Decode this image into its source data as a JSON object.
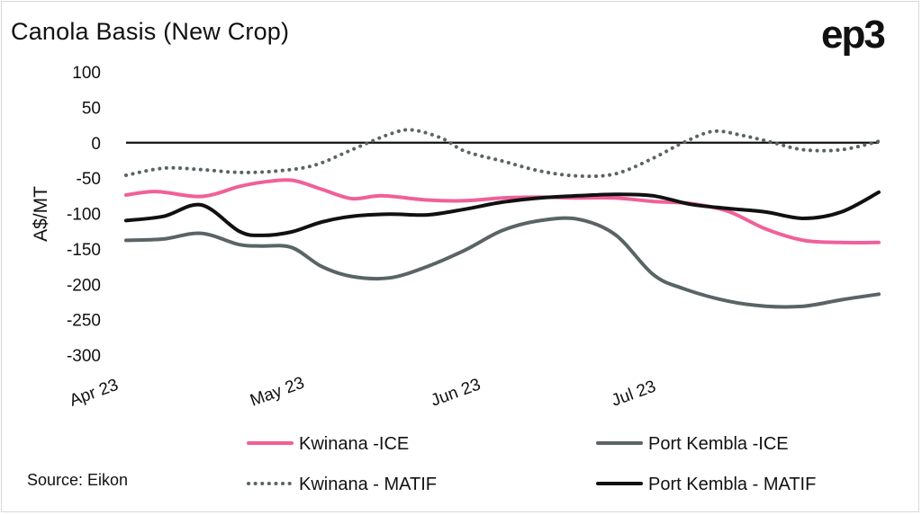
{
  "title": "Canola Basis (New Crop)",
  "logo": "ep3",
  "source": "Source: Eikon",
  "chart_data": {
    "type": "line",
    "title": "Canola Basis (New Crop)",
    "xlabel": "",
    "ylabel": "A$/MT",
    "ylim": [
      -300,
      100
    ],
    "yticks": [
      100,
      50,
      0,
      -50,
      -100,
      -150,
      -200,
      -250,
      -300
    ],
    "ytick_labels": [
      "100",
      "50",
      "0",
      "-50",
      "-100",
      "-150",
      "-200",
      "-250",
      "-300"
    ],
    "xlim": [
      0,
      100
    ],
    "xticks": [
      {
        "pos": 0,
        "label": "Apr 23"
      },
      {
        "pos": 24,
        "label": "May 23"
      },
      {
        "pos": 48,
        "label": "Jun 23"
      },
      {
        "pos": 72,
        "label": "Jul 23"
      }
    ],
    "zero_line": true,
    "legend_position": "bottom",
    "series": [
      {
        "name": "Kwinana -ICE",
        "color": "#f0609a",
        "style": "solid",
        "x": [
          0,
          4,
          10,
          15,
          18,
          22,
          26,
          30,
          34,
          40,
          45,
          50,
          55,
          60,
          65,
          70,
          75,
          80,
          85,
          90,
          95,
          100
        ],
        "values": [
          -74,
          -69,
          -76,
          -62,
          -56,
          -53,
          -66,
          -79,
          -75,
          -81,
          -82,
          -78,
          -77,
          -78,
          -78,
          -83,
          -86,
          -97,
          -122,
          -138,
          -141,
          -141
        ]
      },
      {
        "name": "Port Kembla -ICE",
        "color": "#5a6466",
        "style": "solid",
        "x": [
          0,
          5,
          10,
          15,
          18,
          22,
          26,
          30,
          35,
          40,
          45,
          50,
          55,
          60,
          65,
          70,
          74,
          80,
          85,
          90,
          95,
          100
        ],
        "values": [
          -138,
          -136,
          -128,
          -144,
          -146,
          -148,
          -175,
          -189,
          -191,
          -175,
          -152,
          -124,
          -110,
          -108,
          -130,
          -186,
          -206,
          -224,
          -231,
          -231,
          -222,
          -214
        ]
      },
      {
        "name": "Kwinana - MATIF",
        "color": "#5a6466",
        "style": "dotted",
        "x": [
          0,
          5,
          10,
          15,
          20,
          25,
          30,
          35,
          38,
          42,
          45,
          50,
          55,
          60,
          65,
          70,
          74,
          78,
          82,
          86,
          90,
          95,
          100
        ],
        "values": [
          -46,
          -36,
          -38,
          -42,
          -40,
          -32,
          -10,
          12,
          18,
          6,
          -12,
          -26,
          -40,
          -47,
          -44,
          -22,
          0,
          16,
          10,
          0,
          -10,
          -10,
          2
        ]
      },
      {
        "name": "Port Kembla - MATIF",
        "color": "#111111",
        "style": "solid",
        "x": [
          0,
          5,
          10,
          15,
          18,
          22,
          26,
          30,
          35,
          40,
          45,
          50,
          55,
          60,
          65,
          70,
          75,
          80,
          85,
          90,
          95,
          100
        ],
        "values": [
          -110,
          -104,
          -88,
          -125,
          -131,
          -126,
          -112,
          -104,
          -101,
          -102,
          -94,
          -84,
          -78,
          -75,
          -73,
          -75,
          -87,
          -93,
          -98,
          -107,
          -98,
          -70
        ]
      }
    ]
  }
}
